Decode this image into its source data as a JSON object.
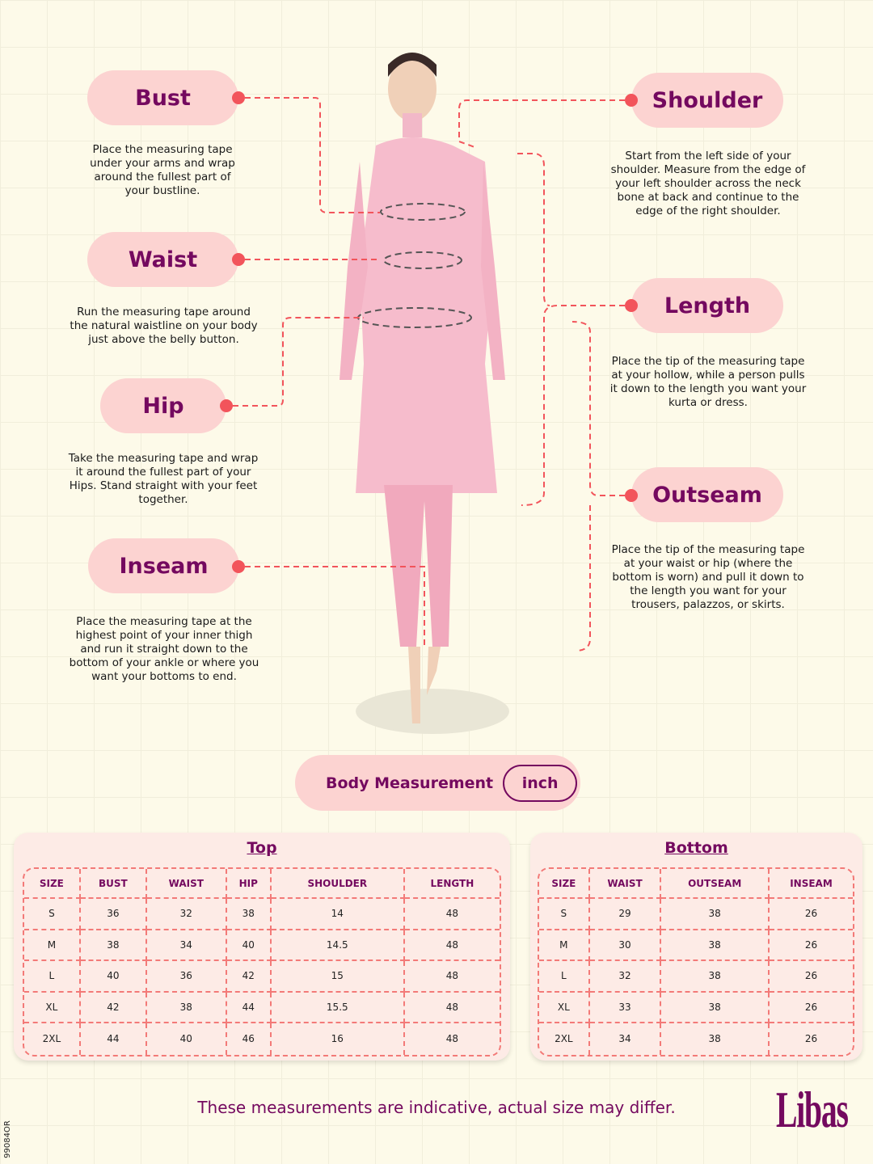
{
  "measures": {
    "bust": {
      "label": "Bust",
      "desc": "Place the measuring tape under your arms and wrap around the fullest part of your bustline."
    },
    "waist": {
      "label": "Waist",
      "desc": "Run the measuring tape around the natural waistline on your body just above the belly button."
    },
    "hip": {
      "label": "Hip",
      "desc": "Take the measuring tape and wrap it around the fullest part of your Hips. Stand straight with your feet together."
    },
    "inseam": {
      "label": "Inseam",
      "desc": "Place the measuring tape at the highest point of your inner thigh and run it straight down to the bottom of your ankle or where you want your bottoms to end."
    },
    "shoulder": {
      "label": "Shoulder",
      "desc": "Start from the left side of your shoulder. Measure from the edge of your left shoulder across the neck bone at back and continue to the edge of the right shoulder."
    },
    "length": {
      "label": "Length",
      "desc": "Place the tip of the measuring tape at your hollow, while a person pulls it down to the length you want your kurta or dress."
    },
    "outseam": {
      "label": "Outseam",
      "desc": "Place the tip of the measuring tape at your waist or hip (where the bottom is worn) and pull it down to the length you want for your trousers, palazzos, or skirts."
    }
  },
  "body_measurement": {
    "label": "Body Measurement",
    "unit": "inch"
  },
  "top": {
    "title": "Top",
    "headers": [
      "SIZE",
      "BUST",
      "WAIST",
      "HIP",
      "SHOULDER",
      "LENGTH"
    ],
    "rows": [
      [
        "S",
        "36",
        "32",
        "38",
        "14",
        "48"
      ],
      [
        "M",
        "38",
        "34",
        "40",
        "14.5",
        "48"
      ],
      [
        "L",
        "40",
        "36",
        "42",
        "15",
        "48"
      ],
      [
        "XL",
        "42",
        "38",
        "44",
        "15.5",
        "48"
      ],
      [
        "2XL",
        "44",
        "40",
        "46",
        "16",
        "48"
      ]
    ]
  },
  "bottom": {
    "title": "Bottom",
    "headers": [
      "SIZE",
      "WAIST",
      "OUTSEAM",
      "INSEAM"
    ],
    "rows": [
      [
        "S",
        "29",
        "38",
        "26"
      ],
      [
        "M",
        "30",
        "38",
        "26"
      ],
      [
        "L",
        "32",
        "38",
        "26"
      ],
      [
        "XL",
        "33",
        "38",
        "26"
      ],
      [
        "2XL",
        "34",
        "38",
        "26"
      ]
    ]
  },
  "footer": "These measurements are indicative, actual size may differ.",
  "brand": "Libas",
  "code": "99084OR",
  "colors": {
    "accent": "#74095f",
    "pill": "#fcd3d1",
    "dot": "#f2545b"
  }
}
